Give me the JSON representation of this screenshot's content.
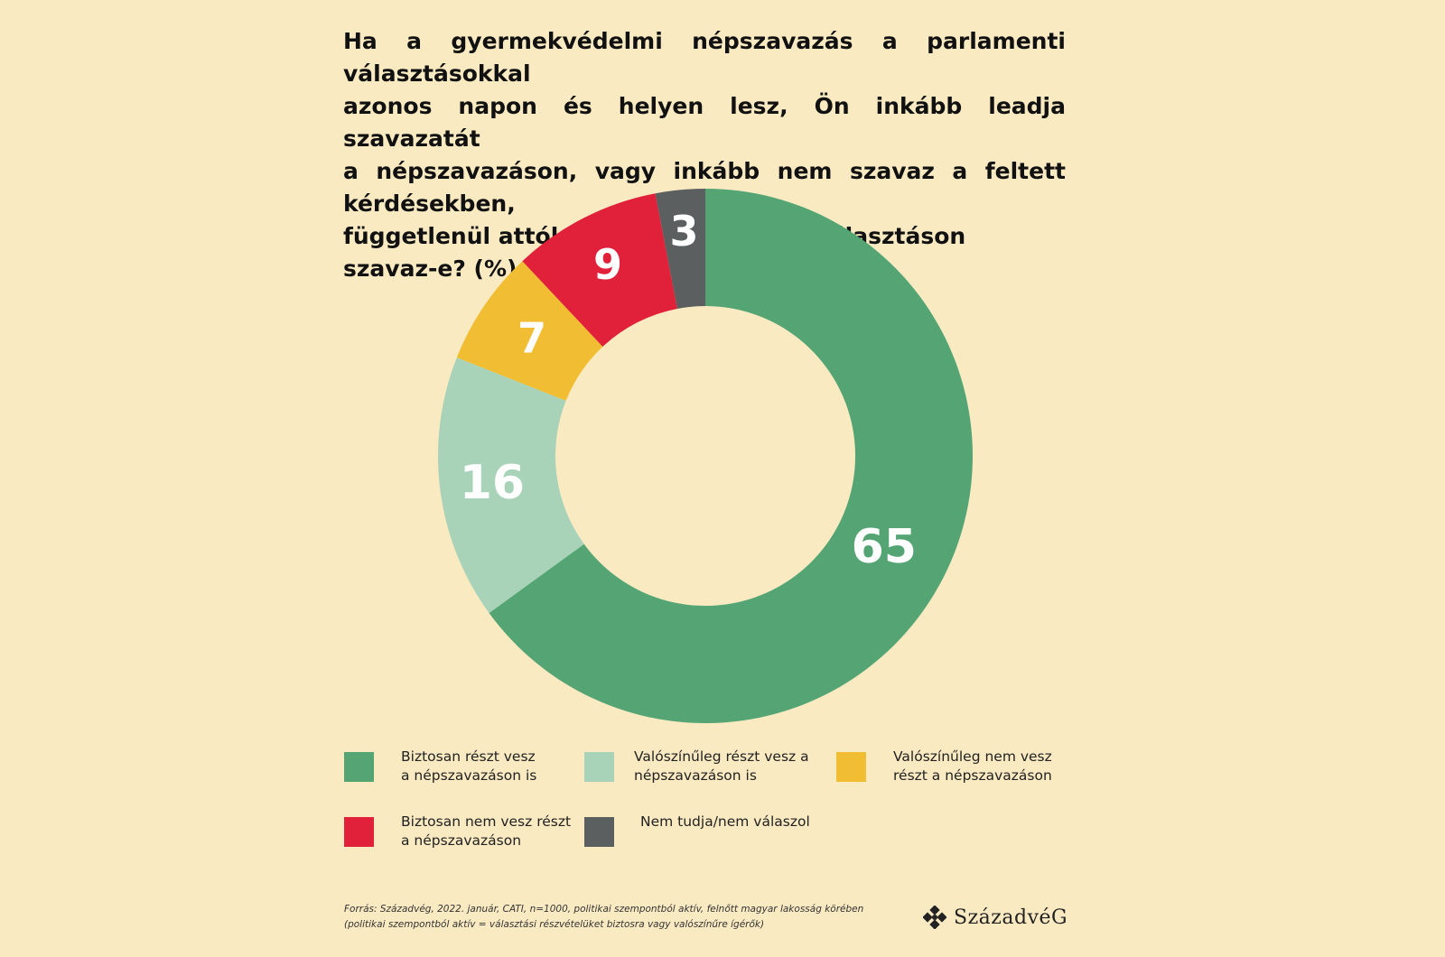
{
  "title_lines": [
    "Ha a gyermekvédelmi népszavazás a parlamenti választásokkal",
    "azonos napon és helyen lesz, Ön inkább leadja szavazatát",
    "a népszavazáson, vagy inkább nem szavaz a feltett kérdésekben,",
    "függetlenül attól, hogy a parlamenti választáson szavaz-e? (%)"
  ],
  "chart_data": {
    "type": "pie",
    "title": "Ha a gyermekvédelmi népszavazás a parlamenti választásokkal azonos napon és helyen lesz, Ön inkább leadja szavazatát a népszavazáson, vagy inkább nem szavaz a feltett kérdésekben, függetlenül attól, hogy a parlamenti választáson szavaz-e? (%)",
    "slices": [
      {
        "label": "Biztosan részt vesz\na népszavazáson is",
        "value": 65,
        "color": "#55a574"
      },
      {
        "label": "Valószínűleg részt vesz a\nnépszavazáson is",
        "value": 16,
        "color": "#a8d3b9"
      },
      {
        "label": "Valószínűleg nem vesz\nrészt a népszavazáson",
        "value": 7,
        "color": "#f0bd33"
      },
      {
        "label": "Biztosan nem vesz részt\na népszavazáson",
        "value": 9,
        "color": "#e1203a"
      },
      {
        "label": "Nem tudja/nem válaszol",
        "value": 3,
        "color": "#5b5f60"
      }
    ],
    "legend_position": "bottom"
  },
  "footer": "Forrás: Századvég, 2022. január, CATI, n=1000, politikai szempontból aktív, felnőtt magyar lakosság körében\n(politikai szempontból aktív = választási részvételüket biztosra vagy valószínűre ígérők)",
  "logo_text": "SzázadvéG"
}
